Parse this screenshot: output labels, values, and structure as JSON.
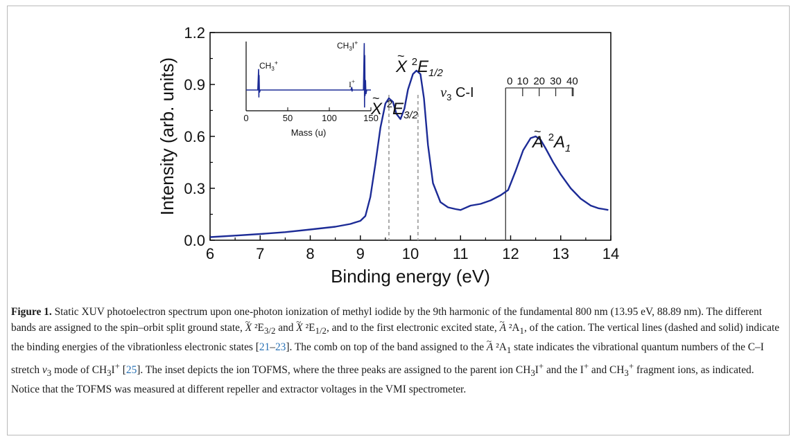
{
  "figure": {
    "caption": {
      "label": "Figure 1.",
      "t1": " Static XUV photoelectron spectrum upon one-photon ionization of methyl iodide by the 9th harmonic of the fundamental 800 nm (13.95 eV, 88.89 nm). The different bands are assigned to the spin–orbit split ground state, ",
      "state_x": "X",
      "t_e32": " ²E",
      "sub_32": "3/2",
      "t_and": " and ",
      "t_e12": " ²E",
      "sub_12": "1/2",
      "t2": ", and to the first electronic excited state, ",
      "state_a": "A",
      "t_a1": " ²A",
      "sub_1": "1",
      "t3": ", of the cation. The vertical lines (dashed and solid) indicate the binding energies of the vibrationless electronic states [",
      "ref1": "21",
      "dash": "–",
      "ref2": "23",
      "t4": "]. The comb on top of the band assigned to the ",
      "t_a1b": " ²A",
      "t5": " state indicates the vibrational quantum numbers of the C–I stretch ",
      "nu": "ν",
      "nu_sub": "3",
      "t6": " mode of CH",
      "sub_3": "3",
      "t7": "I",
      "sup_plus": "+",
      "t8": " [",
      "ref3": "25",
      "t9": "]. The inset depicts the ion TOFMS, where the three peaks are assigned to the parent ion CH",
      "t10": "I",
      "t11": " and the I",
      "t12": " and CH",
      "t13": " fragment ions, as indicated. Notice that the TOFMS was measured at different repeller and extractor voltages in the VMI spectrometer."
    }
  },
  "chart_data": [
    {
      "type": "line",
      "xlabel": "Binding energy (eV)",
      "ylabel": "Intensity (arb. units)",
      "xlim": [
        6,
        14
      ],
      "ylim": [
        0,
        1.2
      ],
      "xticks": [
        "6",
        "7",
        "8",
        "9",
        "10",
        "11",
        "12",
        "13",
        "14"
      ],
      "yticks": [
        "0.0",
        "0.3",
        "0.6",
        "0.9",
        "1.2"
      ],
      "series_color": "#1c2b96",
      "series": [
        {
          "x": [
            6.0,
            6.5,
            7.0,
            7.5,
            8.0,
            8.5,
            8.8,
            9.0,
            9.1,
            9.2,
            9.3,
            9.4,
            9.5,
            9.57,
            9.65,
            9.72,
            9.8,
            9.88,
            9.95,
            10.05,
            10.12,
            10.2,
            10.27,
            10.35,
            10.45,
            10.6,
            10.75,
            10.9,
            11.0,
            11.2,
            11.4,
            11.6,
            11.8,
            11.95,
            12.1,
            12.25,
            12.4,
            12.5,
            12.6,
            12.7,
            12.85,
            13.0,
            13.2,
            13.4,
            13.6,
            13.75,
            13.85,
            13.95
          ],
          "y": [
            0.018,
            0.027,
            0.036,
            0.047,
            0.062,
            0.078,
            0.094,
            0.112,
            0.14,
            0.25,
            0.44,
            0.65,
            0.79,
            0.82,
            0.8,
            0.73,
            0.7,
            0.76,
            0.87,
            0.96,
            0.98,
            0.96,
            0.82,
            0.55,
            0.33,
            0.22,
            0.19,
            0.18,
            0.175,
            0.2,
            0.21,
            0.23,
            0.26,
            0.29,
            0.4,
            0.52,
            0.59,
            0.6,
            0.58,
            0.53,
            0.45,
            0.38,
            0.3,
            0.24,
            0.2,
            0.185,
            0.18,
            0.175
          ]
        }
      ],
      "dashed_lines_x": [
        9.57,
        10.15
      ],
      "solid_line_x": 11.9,
      "comb": {
        "label_nu": "ν",
        "label_sub": "3",
        "label_rest": " C-I",
        "x_start": 11.9,
        "x_end": 13.25,
        "ticks_x": [
          12.24,
          12.57,
          12.9,
          13.23
        ],
        "labels": [
          "0",
          "10",
          "20",
          "30",
          "40"
        ]
      },
      "state_labels": [
        {
          "base": "X",
          "sup": "2",
          "main": "E",
          "sub": "3/2"
        },
        {
          "base": "X",
          "sup": "2",
          "main": "E",
          "sub": "1/2"
        },
        {
          "base": "A",
          "sup": "2",
          "main": "A",
          "sub": "1"
        }
      ]
    },
    {
      "type": "line",
      "title": "",
      "xlabel": "Mass (u)",
      "xlim": [
        0,
        150
      ],
      "xticks": [
        "0",
        "50",
        "100",
        "150"
      ],
      "annotations": [
        {
          "main": "CH",
          "sub": "3",
          "sup": "+"
        },
        {
          "main": "I",
          "sup": "+"
        },
        {
          "main": "CH",
          "sub": "3",
          "main2": "I",
          "sup": "+"
        }
      ],
      "series": [
        {
          "x": [
            0,
            14,
            15,
            15.3,
            15.6,
            16,
            17,
            60,
            100,
            126,
            127,
            127.3,
            127.6,
            128,
            140,
            141,
            142,
            142.3,
            142.6,
            143,
            143.5,
            144,
            145,
            147,
            150
          ],
          "y": [
            0.0,
            0.0,
            0.42,
            -0.15,
            0.3,
            -0.05,
            0.0,
            0.0,
            0.0,
            0.0,
            0.06,
            -0.03,
            0.02,
            0.0,
            0.0,
            0.0,
            0.94,
            -0.35,
            0.7,
            -0.12,
            0.2,
            -0.08,
            0.0,
            0.0,
            0.0
          ]
        }
      ]
    }
  ]
}
